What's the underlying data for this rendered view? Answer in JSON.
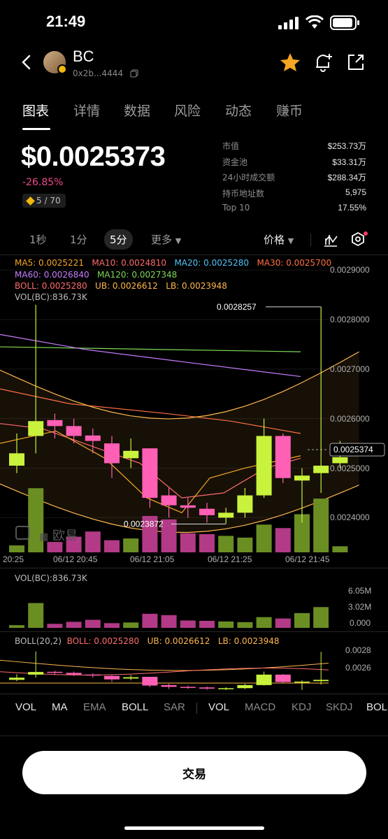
{
  "status": {
    "time": "21:49"
  },
  "token": {
    "name": "BC",
    "address": "0x2b...4444"
  },
  "tabs": [
    {
      "label": "图表",
      "active": true
    },
    {
      "label": "详情"
    },
    {
      "label": "数据"
    },
    {
      "label": "风险"
    },
    {
      "label": "动态"
    },
    {
      "label": "赚币"
    }
  ],
  "price": {
    "value": "$0.0025373",
    "change": "-26.85%",
    "rank": "5 / 70"
  },
  "stats": [
    {
      "k": "市值",
      "v": "$253.73万"
    },
    {
      "k": "资金池",
      "v": "$33.31万"
    },
    {
      "k": "24小时成交额",
      "v": "$288.34万"
    },
    {
      "k": "持币地址数",
      "v": "5,975"
    },
    {
      "k": "Top 10",
      "v": "17.55%"
    }
  ],
  "timeframes": {
    "t1": "1秒",
    "t2": "1分",
    "t3": "5分",
    "more": "更多",
    "mode": "价格"
  },
  "legend": {
    "ma5": "MA5: 0.0025221",
    "ma10": "MA10: 0.0024810",
    "ma20": "MA20: 0.0025280",
    "ma30": "MA30: 0.0025700",
    "ma60": "MA60: 0.0026840",
    "ma120": "MA120: 0.0027348",
    "boll": "BOLL: 0.0025280",
    "ub": "UB: 0.0026612",
    "lb": "LB: 0.0023948",
    "vol": "VOL(BC):836.73K"
  },
  "colors": {
    "up": "#c8f23c",
    "down": "#ff5fb4",
    "upVol": "#6b8e23",
    "downVol": "#b23a86"
  },
  "chart_data": {
    "type": "candlestick",
    "y_ticks": [
      "0.0029000",
      "0.0028000",
      "0.0027000",
      "0.0026000",
      "0.0025000",
      "0.0024000"
    ],
    "x_ticks": [
      "20:25",
      "06/12 20:45",
      "06/12 21:05",
      "06/12 21:25",
      "06/12 21:45"
    ],
    "ylim": [
      0.00233,
      0.00293
    ],
    "current_price": "0.0025374",
    "high_label": "0.0028257",
    "low_label": "0.0023872",
    "candles": [
      {
        "o": 0.002505,
        "c": 0.00253,
        "h": 0.00257,
        "l": 0.00249
      },
      {
        "o": 0.002565,
        "c": 0.002595,
        "h": 0.00283,
        "l": 0.00253
      },
      {
        "o": 0.002597,
        "c": 0.002585,
        "h": 0.00261,
        "l": 0.00256
      },
      {
        "o": 0.002585,
        "c": 0.002565,
        "h": 0.0026,
        "l": 0.00255
      },
      {
        "o": 0.002566,
        "c": 0.002555,
        "h": 0.00258,
        "l": 0.00253
      },
      {
        "o": 0.00255,
        "c": 0.00251,
        "h": 0.002565,
        "l": 0.00248
      },
      {
        "o": 0.00252,
        "c": 0.002535,
        "h": 0.00256,
        "l": 0.0025
      },
      {
        "o": 0.00254,
        "c": 0.00244,
        "h": 0.00254,
        "l": 0.00242
      },
      {
        "o": 0.002445,
        "c": 0.002425,
        "h": 0.00246,
        "l": 0.0024
      },
      {
        "o": 0.002425,
        "c": 0.00242,
        "h": 0.00244,
        "l": 0.0024
      },
      {
        "o": 0.002418,
        "c": 0.002405,
        "h": 0.00243,
        "l": 0.00239
      },
      {
        "o": 0.0024,
        "c": 0.00241,
        "h": 0.00242,
        "l": 0.002388
      },
      {
        "o": 0.00241,
        "c": 0.002445,
        "h": 0.00246,
        "l": 0.0024
      },
      {
        "o": 0.002445,
        "c": 0.002565,
        "h": 0.0026,
        "l": 0.00244
      },
      {
        "o": 0.002565,
        "c": 0.00248,
        "h": 0.00257,
        "l": 0.00247
      },
      {
        "o": 0.002475,
        "c": 0.002485,
        "h": 0.0025,
        "l": 0.00239
      },
      {
        "o": 0.00249,
        "c": 0.002505,
        "h": 0.0028257,
        "l": 0.00245
      },
      {
        "o": 0.00251,
        "c": 0.002522,
        "h": 0.002555,
        "l": 0.0025
      }
    ],
    "volumes_label": {
      "max": "6.05M",
      "mid": "3.02M",
      "min": "0.000"
    },
    "volumes": [
      0.4,
      3.7,
      0.6,
      0.9,
      1.2,
      0.7,
      0.8,
      2.1,
      1.9,
      1.1,
      1.05,
      0.95,
      0.85,
      1.6,
      1.4,
      2.2,
      3.1,
      0.35
    ],
    "boll_panel": {
      "label": "BOLL(20,2)",
      "boll": "BOLL: 0.0025280",
      "ub": "UB: 0.0026612",
      "lb": "LB: 0.0023948",
      "y_ticks": [
        "0.0028",
        "0.0026"
      ]
    }
  },
  "watermark": "欧易",
  "indicators": [
    {
      "label": "VOL",
      "dim": false
    },
    {
      "label": "MA",
      "dim": false
    },
    {
      "label": "EMA",
      "dim": true
    },
    {
      "label": "BOLL",
      "dim": false
    },
    {
      "label": "SAR",
      "dim": true
    },
    {
      "label": "VOL",
      "dim": false
    },
    {
      "label": "MACD",
      "dim": true
    },
    {
      "label": "KDJ",
      "dim": true
    },
    {
      "label": "SKDJ",
      "dim": true
    },
    {
      "label": "BOLL",
      "dim": false
    }
  ],
  "trade": {
    "label": "交易"
  }
}
